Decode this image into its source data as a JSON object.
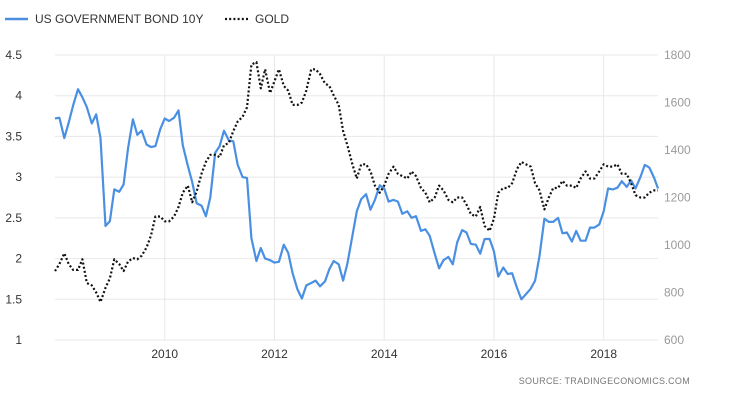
{
  "chart_data": {
    "type": "line",
    "legend_position": "top-left",
    "grid": true,
    "source_text": "SOURCE: TRADINGECONOMICS.COM",
    "x_tick_labels": [
      "2010",
      "2012",
      "2014",
      "2016",
      "2018"
    ],
    "x_tick_values": [
      2010,
      2012,
      2014,
      2016,
      2018
    ],
    "xlim": [
      2008.0,
      2018.99
    ],
    "left_axis": {
      "ylim": [
        1,
        4.5
      ],
      "ticks": [
        1,
        1.5,
        2,
        2.5,
        3,
        3.5,
        4,
        4.5
      ],
      "tick_labels": [
        "1",
        "1.5",
        "2",
        "2.5",
        "3",
        "3.5",
        "4",
        "4.5"
      ]
    },
    "right_axis": {
      "ylim": [
        600,
        1800
      ],
      "ticks": [
        600,
        800,
        1000,
        1200,
        1400,
        1600,
        1800
      ],
      "tick_labels": [
        "600",
        "800",
        "1000",
        "1200",
        "1400",
        "1600",
        "1800"
      ]
    },
    "series": [
      {
        "name": "US GOVERNMENT BOND 10Y",
        "axis": "left",
        "color": "#4a90e2",
        "style": "solid",
        "x": [
          2008.0,
          2008.08,
          2008.17,
          2008.25,
          2008.33,
          2008.42,
          2008.5,
          2008.58,
          2008.67,
          2008.75,
          2008.83,
          2008.92,
          2009.0,
          2009.08,
          2009.17,
          2009.25,
          2009.33,
          2009.42,
          2009.5,
          2009.58,
          2009.67,
          2009.75,
          2009.83,
          2009.92,
          2010.0,
          2010.08,
          2010.17,
          2010.25,
          2010.33,
          2010.42,
          2010.5,
          2010.58,
          2010.67,
          2010.75,
          2010.83,
          2010.92,
          2011.0,
          2011.08,
          2011.17,
          2011.25,
          2011.33,
          2011.42,
          2011.5,
          2011.58,
          2011.67,
          2011.75,
          2011.83,
          2011.92,
          2012.0,
          2012.08,
          2012.17,
          2012.25,
          2012.33,
          2012.42,
          2012.5,
          2012.58,
          2012.67,
          2012.75,
          2012.83,
          2012.92,
          2013.0,
          2013.08,
          2013.17,
          2013.25,
          2013.33,
          2013.42,
          2013.5,
          2013.58,
          2013.67,
          2013.75,
          2013.83,
          2013.92,
          2014.0,
          2014.08,
          2014.17,
          2014.25,
          2014.33,
          2014.42,
          2014.5,
          2014.58,
          2014.67,
          2014.75,
          2014.83,
          2014.92,
          2015.0,
          2015.08,
          2015.17,
          2015.25,
          2015.33,
          2015.42,
          2015.5,
          2015.58,
          2015.67,
          2015.75,
          2015.83,
          2015.92,
          2016.0,
          2016.08,
          2016.17,
          2016.25,
          2016.33,
          2016.42,
          2016.5,
          2016.58,
          2016.67,
          2016.75,
          2016.83,
          2016.92,
          2017.0,
          2017.08,
          2017.17,
          2017.25,
          2017.33,
          2017.42,
          2017.5,
          2017.58,
          2017.67,
          2017.75,
          2017.83,
          2017.92,
          2018.0,
          2018.08,
          2018.17,
          2018.25,
          2018.33,
          2018.42,
          2018.5,
          2018.58,
          2018.67,
          2018.75,
          2018.83,
          2018.92,
          2018.99
        ],
        "y": [
          3.72,
          3.73,
          3.48,
          3.67,
          3.88,
          4.08,
          3.98,
          3.86,
          3.66,
          3.77,
          3.48,
          2.4,
          2.46,
          2.85,
          2.82,
          2.91,
          3.35,
          3.71,
          3.52,
          3.57,
          3.4,
          3.37,
          3.38,
          3.59,
          3.72,
          3.69,
          3.73,
          3.82,
          3.39,
          3.14,
          2.94,
          2.68,
          2.65,
          2.52,
          2.75,
          3.3,
          3.38,
          3.57,
          3.45,
          3.44,
          3.15,
          3.0,
          2.99,
          2.25,
          1.97,
          2.13,
          2.0,
          1.98,
          1.95,
          1.96,
          2.17,
          2.07,
          1.82,
          1.62,
          1.51,
          1.67,
          1.7,
          1.73,
          1.66,
          1.72,
          1.87,
          1.97,
          1.93,
          1.73,
          1.94,
          2.28,
          2.58,
          2.73,
          2.79,
          2.6,
          2.72,
          2.9,
          2.86,
          2.7,
          2.72,
          2.7,
          2.55,
          2.58,
          2.5,
          2.52,
          2.34,
          2.36,
          2.28,
          2.06,
          1.88,
          1.98,
          2.02,
          1.93,
          2.2,
          2.35,
          2.32,
          2.18,
          2.17,
          2.06,
          2.24,
          2.24,
          2.09,
          1.78,
          1.89,
          1.81,
          1.82,
          1.64,
          1.5,
          1.56,
          1.63,
          1.73,
          2.03,
          2.49,
          2.45,
          2.45,
          2.5,
          2.31,
          2.32,
          2.21,
          2.34,
          2.22,
          2.22,
          2.38,
          2.38,
          2.42,
          2.58,
          2.86,
          2.85,
          2.87,
          2.95,
          2.88,
          2.96,
          2.86,
          3.0,
          3.15,
          3.12,
          2.99,
          2.86
        ]
      },
      {
        "name": "GOLD",
        "axis": "right",
        "color": "#111111",
        "style": "dotted",
        "x": [
          2008.0,
          2008.08,
          2008.17,
          2008.25,
          2008.33,
          2008.42,
          2008.5,
          2008.58,
          2008.67,
          2008.75,
          2008.83,
          2008.92,
          2009.0,
          2009.08,
          2009.17,
          2009.25,
          2009.33,
          2009.42,
          2009.5,
          2009.58,
          2009.67,
          2009.75,
          2009.83,
          2009.92,
          2010.0,
          2010.08,
          2010.17,
          2010.25,
          2010.33,
          2010.42,
          2010.5,
          2010.58,
          2010.67,
          2010.75,
          2010.83,
          2010.92,
          2011.0,
          2011.08,
          2011.17,
          2011.25,
          2011.33,
          2011.42,
          2011.5,
          2011.58,
          2011.67,
          2011.75,
          2011.83,
          2011.92,
          2012.0,
          2012.08,
          2012.17,
          2012.25,
          2012.33,
          2012.42,
          2012.5,
          2012.58,
          2012.67,
          2012.75,
          2012.83,
          2012.92,
          2013.0,
          2013.08,
          2013.17,
          2013.25,
          2013.33,
          2013.42,
          2013.5,
          2013.58,
          2013.67,
          2013.75,
          2013.83,
          2013.92,
          2014.0,
          2014.08,
          2014.17,
          2014.25,
          2014.33,
          2014.42,
          2014.5,
          2014.58,
          2014.67,
          2014.75,
          2014.83,
          2014.92,
          2015.0,
          2015.08,
          2015.17,
          2015.25,
          2015.33,
          2015.42,
          2015.5,
          2015.58,
          2015.67,
          2015.75,
          2015.83,
          2015.92,
          2016.0,
          2016.08,
          2016.17,
          2016.25,
          2016.33,
          2016.42,
          2016.5,
          2016.58,
          2016.67,
          2016.75,
          2016.83,
          2016.92,
          2017.0,
          2017.08,
          2017.17,
          2017.25,
          2017.33,
          2017.42,
          2017.5,
          2017.58,
          2017.67,
          2017.75,
          2017.83,
          2017.92,
          2018.0,
          2018.08,
          2018.17,
          2018.25,
          2018.33,
          2018.42,
          2018.5,
          2018.58,
          2018.67,
          2018.75,
          2018.83,
          2018.92,
          2018.99
        ],
        "y": [
          890,
          920,
          965,
          920,
          895,
          895,
          940,
          840,
          830,
          800,
          760,
          820,
          860,
          940,
          920,
          890,
          930,
          945,
          940,
          955,
          990,
          1040,
          1120,
          1120,
          1100,
          1100,
          1120,
          1160,
          1220,
          1250,
          1180,
          1225,
          1300,
          1350,
          1380,
          1380,
          1370,
          1420,
          1430,
          1480,
          1520,
          1540,
          1580,
          1760,
          1770,
          1660,
          1740,
          1640,
          1690,
          1740,
          1670,
          1650,
          1590,
          1590,
          1600,
          1650,
          1740,
          1740,
          1720,
          1680,
          1670,
          1630,
          1590,
          1480,
          1420,
          1340,
          1280,
          1340,
          1340,
          1310,
          1250,
          1220,
          1250,
          1300,
          1330,
          1300,
          1290,
          1280,
          1310,
          1290,
          1240,
          1220,
          1180,
          1200,
          1250,
          1230,
          1190,
          1180,
          1200,
          1200,
          1170,
          1130,
          1120,
          1160,
          1080,
          1060,
          1110,
          1220,
          1240,
          1240,
          1260,
          1320,
          1350,
          1340,
          1330,
          1260,
          1230,
          1150,
          1200,
          1240,
          1240,
          1270,
          1250,
          1250,
          1240,
          1280,
          1310,
          1280,
          1280,
          1310,
          1340,
          1330,
          1330,
          1340,
          1300,
          1300,
          1260,
          1210,
          1200,
          1200,
          1220,
          1230,
          1230
        ]
      }
    ]
  }
}
